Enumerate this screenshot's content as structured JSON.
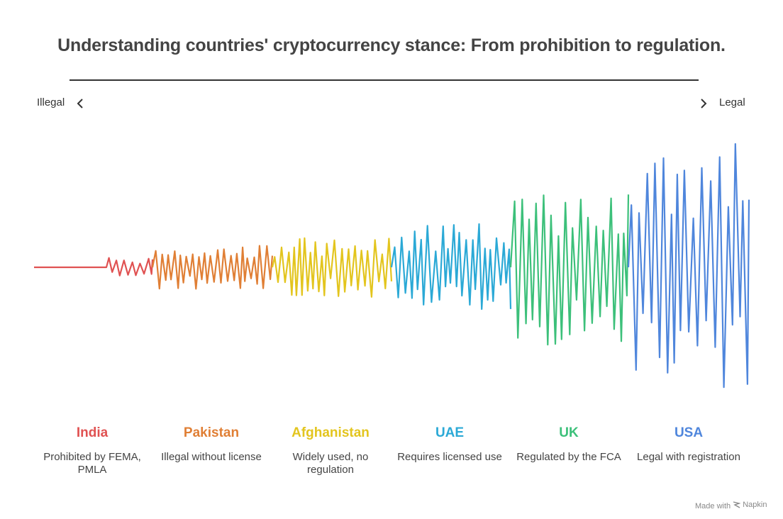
{
  "title": "Understanding countries' cryptocurrency stance: From prohibition to regulation.",
  "axis": {
    "left_label": "Illegal",
    "right_label": "Legal",
    "left_icon": "chevron-left-icon",
    "right_icon": "chevron-right-icon"
  },
  "countries": [
    {
      "name": "India",
      "description": "Prohibited by FEMA, PMLA",
      "color": "#e05252"
    },
    {
      "name": "Pakistan",
      "description": "Illegal without license",
      "color": "#e07f35"
    },
    {
      "name": "Afghanistan",
      "description": "Widely used, no regulation",
      "color": "#e3c51e"
    },
    {
      "name": "UAE",
      "description": "Requires licensed use",
      "color": "#2ba9d6"
    },
    {
      "name": "UK",
      "description": "Regulated by the FCA",
      "color": "#3cc07a"
    },
    {
      "name": "USA",
      "description": "Legal with registration",
      "color": "#4f86dc"
    }
  ],
  "footer": {
    "made_with": "Made with",
    "brand": "Napkin",
    "brand_icon": "napkin-logo-icon"
  }
}
